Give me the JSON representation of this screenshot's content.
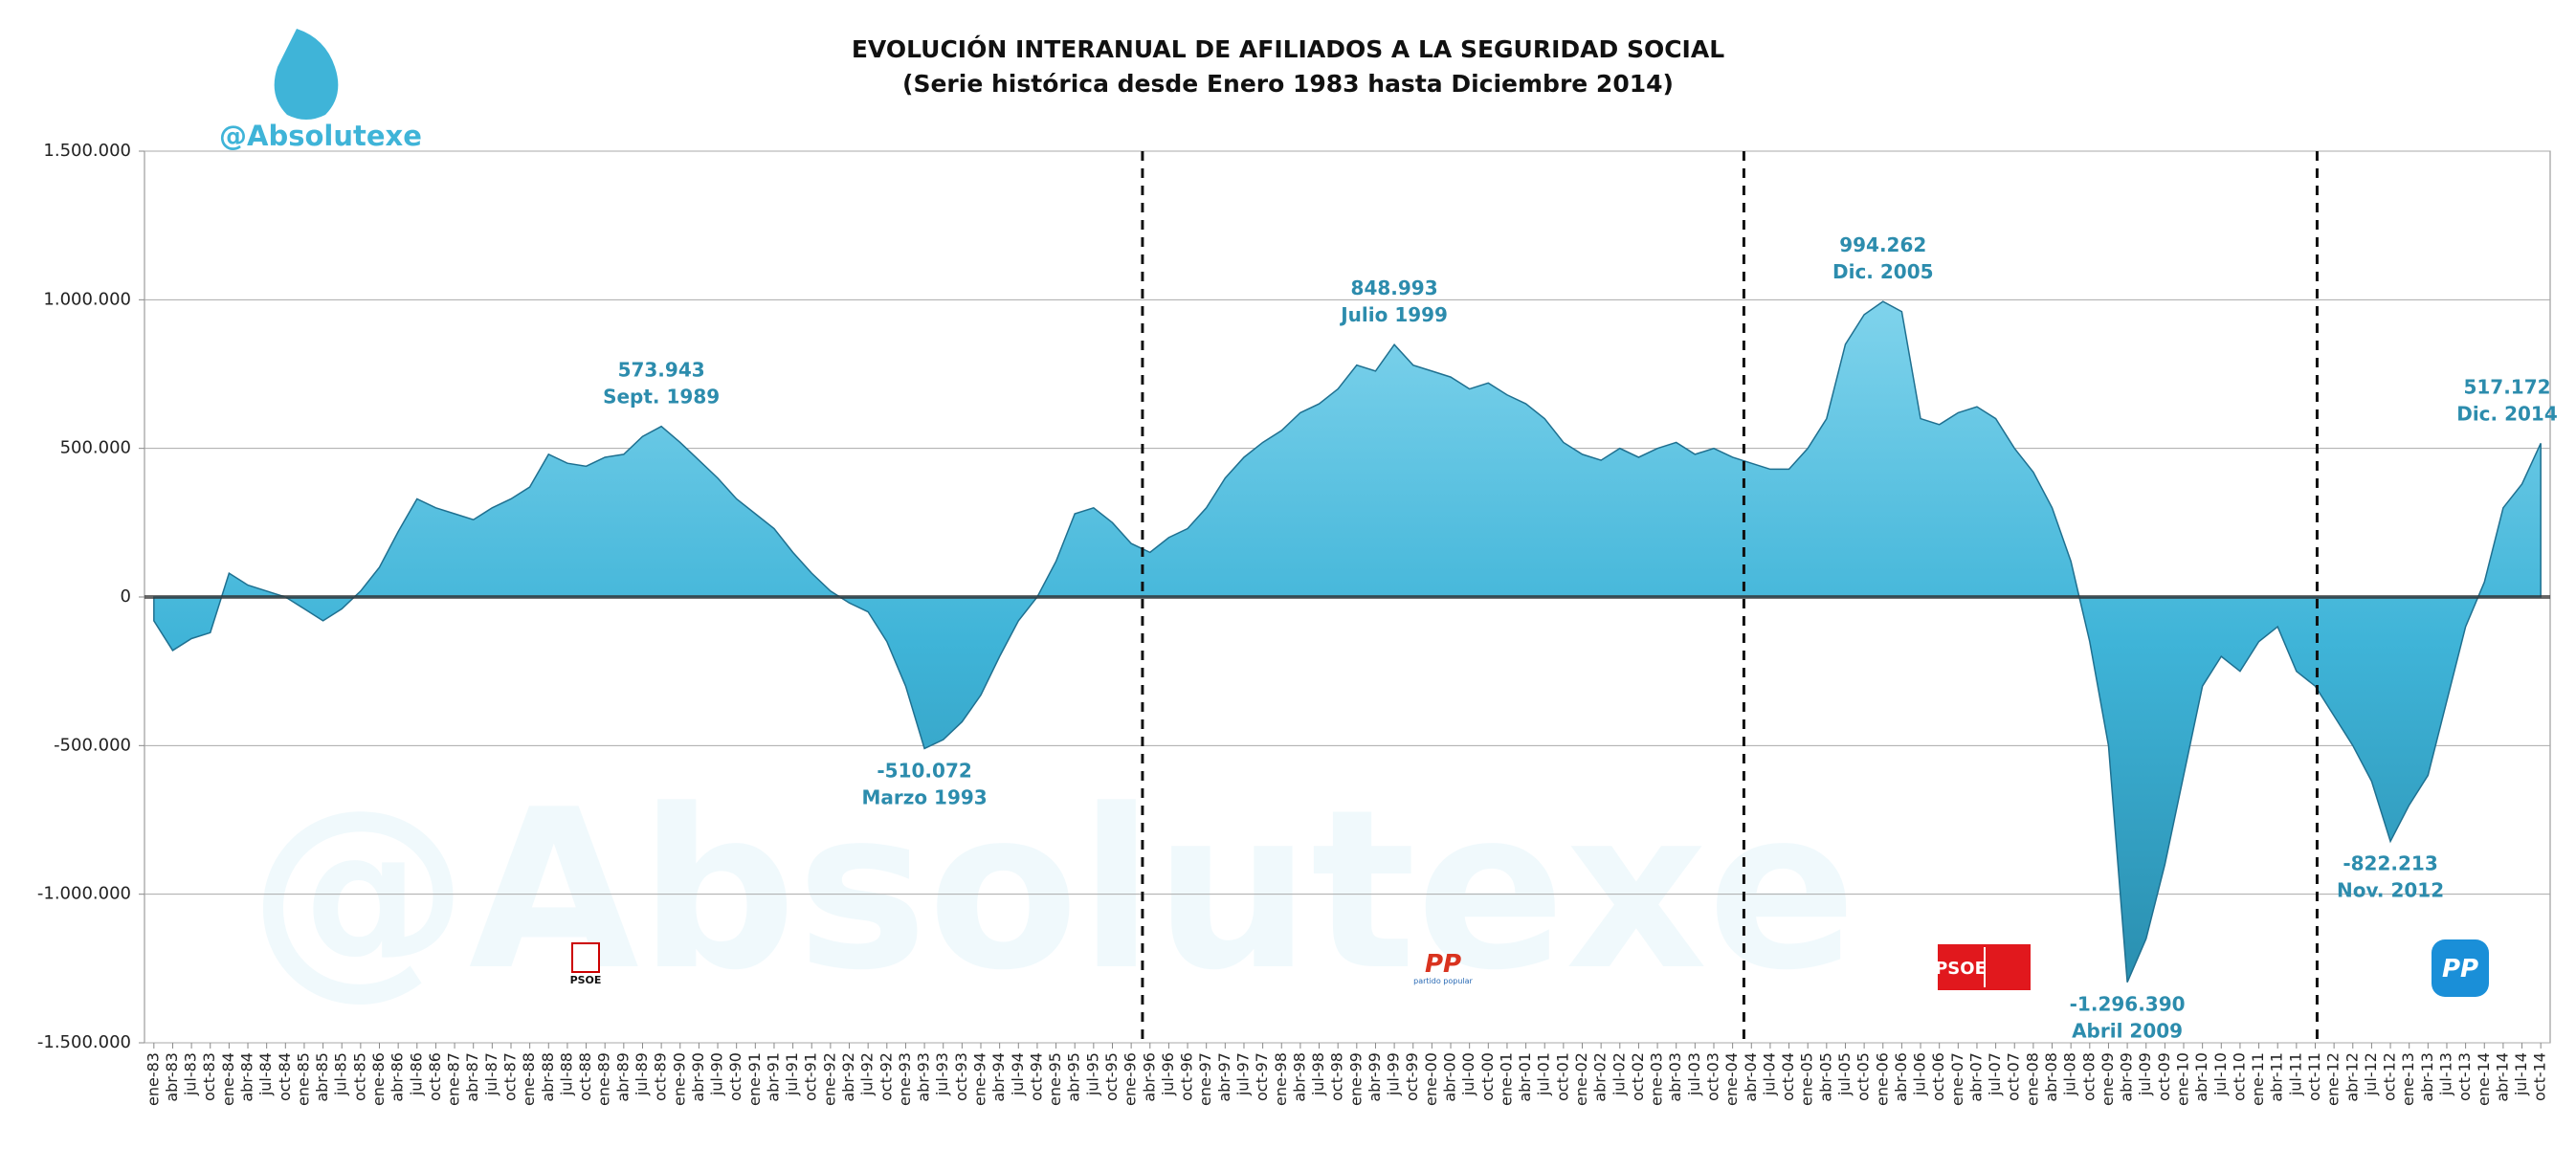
{
  "brand": "@Absolutexe",
  "watermark": "@Absolutexe",
  "logos": [
    "PSOE",
    "PP",
    "partido popular",
    "PSOE",
    "PP"
  ],
  "chart_data": {
    "type": "area",
    "title": "EVOLUCIÓN INTERANUAL DE AFILIADOS A LA SEGURIDAD SOCIAL",
    "subtitle": "(Serie histórica desde Enero 1983 hasta Diciembre 2014)",
    "color": "#3fb4d8",
    "grid": true,
    "ylim": [
      -1500000,
      1500000
    ],
    "yticks": [
      {
        "value": -1500000,
        "label": "-1.500.000"
      },
      {
        "value": -1000000,
        "label": "-1.000.000"
      },
      {
        "value": -500000,
        "label": "-500.000"
      },
      0,
      {
        "value": 500000,
        "label": "500.000"
      },
      {
        "value": 1000000,
        "label": "1.000.000"
      },
      {
        "value": 1500000,
        "label": "1.500.000"
      }
    ],
    "categories": [
      "ene-83",
      "abr-83",
      "jul-83",
      "oct-83",
      "ene-84",
      "abr-84",
      "jul-84",
      "oct-84",
      "ene-85",
      "abr-85",
      "jul-85",
      "oct-85",
      "ene-86",
      "abr-86",
      "jul-86",
      "oct-86",
      "ene-87",
      "abr-87",
      "jul-87",
      "oct-87",
      "ene-88",
      "abr-88",
      "jul-88",
      "oct-88",
      "ene-89",
      "abr-89",
      "jul-89",
      "oct-89",
      "ene-90",
      "abr-90",
      "jul-90",
      "oct-90",
      "ene-91",
      "abr-91",
      "jul-91",
      "oct-91",
      "ene-92",
      "abr-92",
      "jul-92",
      "oct-92",
      "ene-93",
      "abr-93",
      "jul-93",
      "oct-93",
      "ene-94",
      "abr-94",
      "jul-94",
      "oct-94",
      "ene-95",
      "abr-95",
      "jul-95",
      "oct-95",
      "ene-96",
      "abr-96",
      "jul-96",
      "oct-96",
      "ene-97",
      "abr-97",
      "jul-97",
      "oct-97",
      "ene-98",
      "abr-98",
      "jul-98",
      "oct-98",
      "ene-99",
      "abr-99",
      "jul-99",
      "oct-99",
      "ene-00",
      "abr-00",
      "jul-00",
      "oct-00",
      "ene-01",
      "abr-01",
      "jul-01",
      "oct-01",
      "ene-02",
      "abr-02",
      "jul-02",
      "oct-02",
      "ene-03",
      "abr-03",
      "jul-03",
      "oct-03",
      "ene-04",
      "abr-04",
      "jul-04",
      "oct-04",
      "ene-05",
      "abr-05",
      "jul-05",
      "oct-05",
      "ene-06",
      "abr-06",
      "jul-06",
      "oct-06",
      "ene-07",
      "abr-07",
      "jul-07",
      "oct-07",
      "ene-08",
      "abr-08",
      "jul-08",
      "oct-08",
      "ene-09",
      "abr-09",
      "jul-09",
      "oct-09",
      "ene-10",
      "abr-10",
      "jul-10",
      "oct-10",
      "ene-11",
      "abr-11",
      "jul-11",
      "oct-11",
      "ene-12",
      "abr-12",
      "jul-12",
      "oct-12",
      "ene-13",
      "abr-13",
      "jul-13",
      "oct-13",
      "ene-14",
      "abr-14",
      "jul-14",
      "oct-14"
    ],
    "values": [
      -80000,
      -180000,
      -140000,
      -120000,
      80000,
      40000,
      20000,
      0,
      -40000,
      -80000,
      -40000,
      20000,
      100000,
      220000,
      330000,
      300000,
      280000,
      260000,
      300000,
      330000,
      370000,
      480000,
      450000,
      440000,
      470000,
      480000,
      540000,
      573943,
      520000,
      460000,
      400000,
      330000,
      280000,
      230000,
      150000,
      80000,
      20000,
      -20000,
      -50000,
      -150000,
      -300000,
      -510072,
      -480000,
      -420000,
      -330000,
      -200000,
      -80000,
      0,
      120000,
      280000,
      300000,
      250000,
      180000,
      150000,
      200000,
      230000,
      300000,
      400000,
      470000,
      520000,
      560000,
      620000,
      650000,
      700000,
      780000,
      760000,
      848993,
      780000,
      760000,
      740000,
      700000,
      720000,
      680000,
      650000,
      600000,
      520000,
      480000,
      460000,
      500000,
      470000,
      500000,
      520000,
      480000,
      500000,
      470000,
      450000,
      430000,
      430000,
      500000,
      600000,
      850000,
      950000,
      994262,
      960000,
      600000,
      580000,
      620000,
      640000,
      600000,
      500000,
      420000,
      300000,
      120000,
      -150000,
      -500000,
      -1296390,
      -1150000,
      -900000,
      -600000,
      -300000,
      -200000,
      -250000,
      -150000,
      -100000,
      -250000,
      -300000,
      -400000,
      -500000,
      -620000,
      -822213,
      -700000,
      -600000,
      -350000,
      -100000,
      50000,
      300000,
      380000,
      517172
    ],
    "value_labels": [
      null,
      null,
      null,
      null,
      null,
      null,
      null,
      null,
      null,
      null,
      null,
      null,
      null,
      null,
      null,
      null,
      null,
      null,
      null,
      null,
      null,
      null,
      null,
      null,
      null,
      null,
      null,
      "573.943",
      null,
      null,
      null,
      null,
      null,
      null,
      null,
      null,
      null,
      null,
      null,
      null,
      null,
      "-510.072",
      null,
      null,
      null,
      null,
      null,
      null,
      null,
      null,
      null,
      null,
      null,
      null,
      null,
      null,
      null,
      null,
      null,
      null,
      null,
      null,
      null,
      null,
      null,
      null,
      "848.993",
      null,
      null,
      null,
      null,
      null,
      null,
      null,
      null,
      null,
      null,
      null,
      null,
      null,
      null,
      null,
      null,
      null,
      null,
      null,
      null,
      null,
      null,
      null,
      null,
      null,
      "994.262",
      null,
      null,
      null,
      null,
      null,
      null,
      null,
      null,
      null,
      null,
      null,
      null,
      "-1.296.390",
      null,
      null,
      null,
      null,
      null,
      null,
      null,
      null,
      null,
      null,
      null,
      null,
      null,
      "-822.213",
      null,
      null,
      null,
      null,
      null,
      null,
      null,
      "517.172"
    ],
    "value_notes": [
      null,
      null,
      null,
      null,
      null,
      null,
      null,
      null,
      null,
      null,
      null,
      null,
      null,
      null,
      null,
      null,
      null,
      null,
      null,
      null,
      null,
      null,
      null,
      null,
      null,
      null,
      null,
      "Sept. 1989",
      null,
      null,
      null,
      null,
      null,
      null,
      null,
      null,
      null,
      null,
      null,
      null,
      null,
      "Marzo 1993",
      null,
      null,
      null,
      null,
      null,
      null,
      null,
      null,
      null,
      null,
      null,
      null,
      null,
      null,
      null,
      null,
      null,
      null,
      null,
      null,
      null,
      null,
      null,
      null,
      "Julio 1999",
      null,
      null,
      null,
      null,
      null,
      null,
      null,
      null,
      null,
      null,
      null,
      null,
      null,
      null,
      null,
      null,
      null,
      null,
      null,
      null,
      null,
      null,
      null,
      null,
      null,
      "Dic. 2005",
      null,
      null,
      null,
      null,
      null,
      null,
      null,
      null,
      null,
      null,
      null,
      null,
      "Abril 2009",
      null,
      null,
      null,
      null,
      null,
      null,
      null,
      null,
      null,
      null,
      null,
      null,
      null,
      "Nov. 2012",
      null,
      null,
      null,
      null,
      null,
      null,
      null,
      "Dic. 2014"
    ]
  }
}
